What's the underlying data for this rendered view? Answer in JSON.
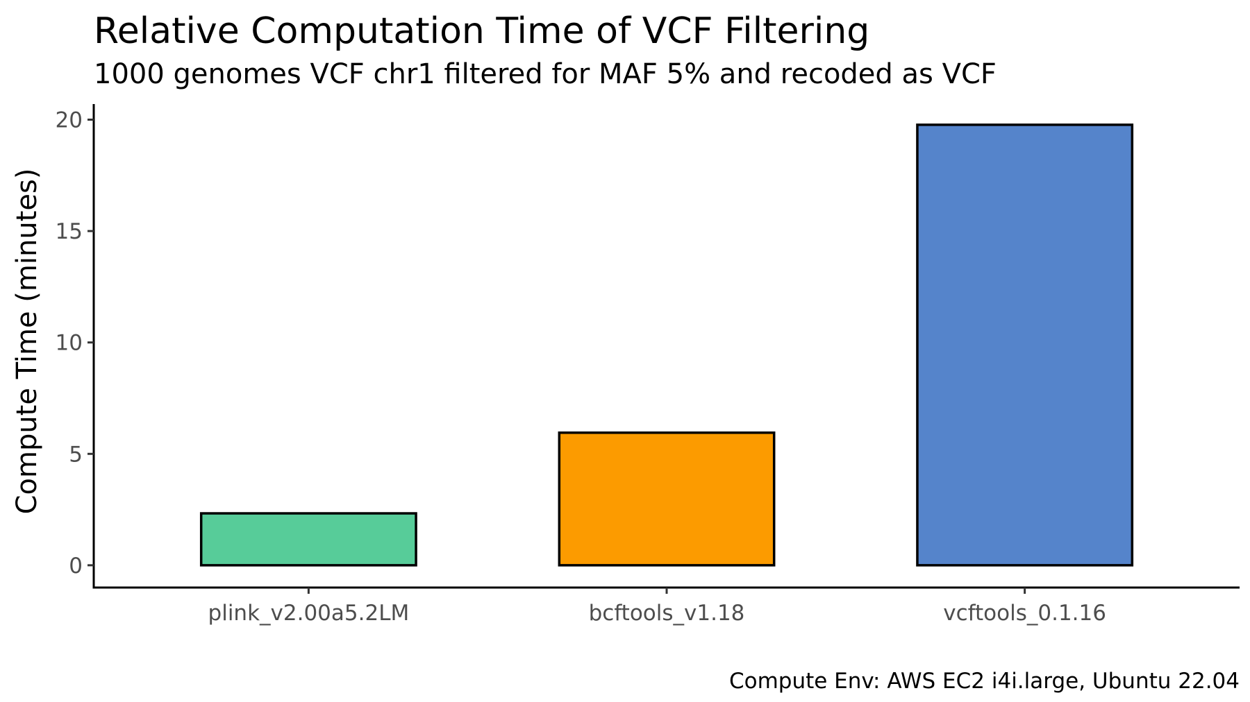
{
  "chart_data": {
    "type": "bar",
    "title": "Relative Computation Time of VCF Filtering",
    "subtitle": "1000 genomes VCF chr1 filtered for MAF 5% and recoded as VCF",
    "caption": "Compute Env: AWS EC2 i4i.large, Ubuntu 22.04",
    "xlabel": "",
    "ylabel": "Compute Time (minutes)",
    "categories": [
      "plink_v2.00a5.2LM",
      "bcftools_v1.18",
      "vcftools_0.1.16"
    ],
    "values": [
      2.33,
      5.95,
      19.77
    ],
    "colors": [
      "#57cc99",
      "#fc9b00",
      "#5584cb"
    ],
    "bar_outline_color": "#000000",
    "ylim": [
      -1,
      20.7
    ],
    "yticks": [
      0,
      5,
      10,
      15,
      20
    ],
    "ytick_labels": [
      "0",
      "5",
      "10",
      "15",
      "20"
    ],
    "grid": false,
    "legend": "none"
  }
}
